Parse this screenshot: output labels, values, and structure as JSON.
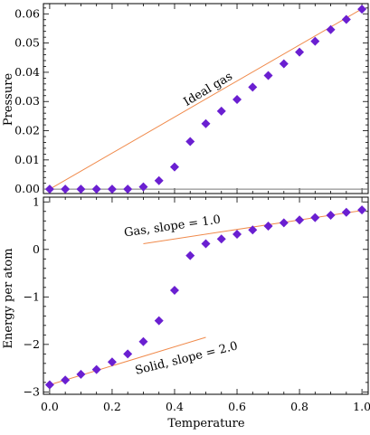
{
  "chart_data": [
    {
      "type": "scatter",
      "xlabel": "",
      "ylabel": "Pressure",
      "xlim": [
        -0.02,
        1.02
      ],
      "ylim": [
        -0.0015,
        0.0635
      ],
      "xticks": [
        0.0,
        0.2,
        0.4,
        0.6,
        0.8,
        1.0
      ],
      "yticks": [
        0.0,
        0.01,
        0.02,
        0.03,
        0.04,
        0.05,
        0.06
      ],
      "ytick_labels": [
        "0.00",
        "0.01",
        "0.02",
        "0.03",
        "0.04",
        "0.05",
        "0.06"
      ],
      "baseline_y": 0,
      "series": [
        {
          "x": [
            0.0,
            0.05,
            0.1,
            0.15,
            0.2,
            0.25,
            0.3,
            0.35,
            0.4,
            0.45,
            0.5,
            0.55,
            0.6,
            0.65,
            0.7,
            0.75,
            0.8,
            0.85,
            0.9,
            0.95,
            1.0
          ],
          "values": [
            0.0,
            0.0,
            0.0,
            0.0,
            0.0,
            0.0,
            0.0008,
            0.0029,
            0.0076,
            0.0163,
            0.0224,
            0.0267,
            0.0307,
            0.0349,
            0.0389,
            0.0429,
            0.0469,
            0.0506,
            0.0546,
            0.0581,
            0.0616
          ],
          "color": "#6a1fd1",
          "marker": "diamond"
        }
      ],
      "reference_lines": [
        {
          "label": "Ideal gas",
          "x": [
            0.0,
            1.0
          ],
          "y": [
            0.0,
            0.0617
          ],
          "color": "#f08a4b"
        }
      ]
    },
    {
      "type": "scatter",
      "xlabel": "Temperature",
      "ylabel": "Energy per atom",
      "xlim": [
        -0.02,
        1.02
      ],
      "ylim": [
        -3.05,
        1.1
      ],
      "xticks": [
        0.0,
        0.2,
        0.4,
        0.6,
        0.8,
        1.0
      ],
      "xtick_labels": [
        "0.0",
        "0.2",
        "0.4",
        "0.6",
        "0.8",
        "1.0"
      ],
      "yticks": [
        -3,
        -2,
        -1,
        0,
        1
      ],
      "ytick_labels": [
        "−3",
        "−2",
        "−1",
        "0",
        "1"
      ],
      "series": [
        {
          "x": [
            0.0,
            0.05,
            0.1,
            0.15,
            0.2,
            0.25,
            0.3,
            0.35,
            0.4,
            0.45,
            0.5,
            0.55,
            0.6,
            0.65,
            0.7,
            0.75,
            0.8,
            0.85,
            0.9,
            0.95,
            1.0
          ],
          "values": [
            -2.85,
            -2.75,
            -2.63,
            -2.53,
            -2.37,
            -2.2,
            -1.94,
            -1.5,
            -0.86,
            -0.13,
            0.12,
            0.22,
            0.32,
            0.41,
            0.49,
            0.56,
            0.62,
            0.67,
            0.72,
            0.78,
            0.83
          ],
          "color": "#6a1fd1",
          "marker": "diamond"
        }
      ],
      "reference_lines": [
        {
          "label": "Gas, slope = 1.0",
          "x": [
            0.3,
            1.0
          ],
          "y": [
            0.12,
            0.82
          ],
          "color": "#f08a4b"
        },
        {
          "label": "Solid, slope = 2.0",
          "x": [
            0.0,
            0.5
          ],
          "y": [
            -2.85,
            -1.85
          ],
          "color": "#f08a4b"
        }
      ]
    }
  ]
}
